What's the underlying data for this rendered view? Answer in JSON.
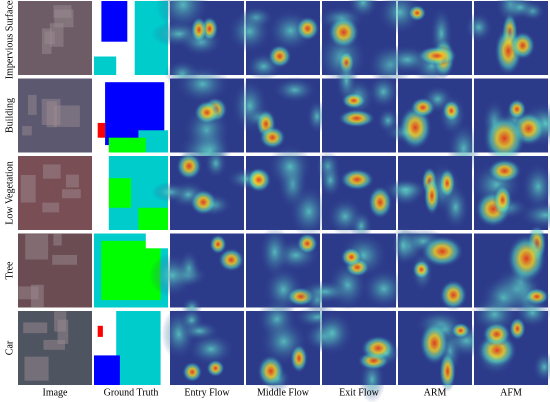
{
  "row_labels": [
    "Impervious Surfaces",
    "Building",
    "Low Vegetation",
    "Tree",
    "Car"
  ],
  "column_labels": [
    "Image",
    "Ground Truth",
    "Entry Flow",
    "Middle Flow",
    "Exit Flow",
    "ARM",
    "AFM"
  ]
}
